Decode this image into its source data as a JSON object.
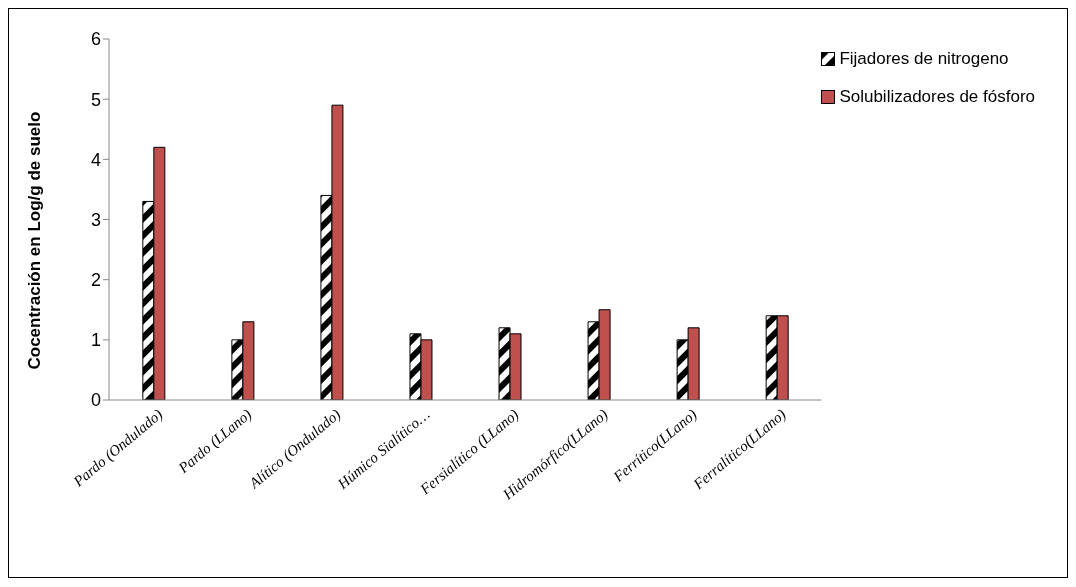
{
  "chart_data": {
    "type": "bar",
    "ylabel": "Cocentración en Log/g de suelo",
    "categories": [
      "Pardo (Ondulado)",
      "Pardo (LLano)",
      "Alítico (Ondulado)",
      "Húmico Sialítico…",
      "Fersialítico (LLano)",
      "Hidromórfico(LLano)",
      "Ferrítico(LLano)",
      "Ferralítico(LLano)"
    ],
    "series": [
      {
        "name": "Fijadores de nitrogeno",
        "color": "#000000",
        "values": [
          3.3,
          1.0,
          3.4,
          1.1,
          1.2,
          1.3,
          1.0,
          1.4
        ]
      },
      {
        "name": "Solubilizadores de fósforo",
        "color": "#c0504d",
        "values": [
          4.2,
          1.3,
          4.9,
          1.0,
          1.1,
          1.5,
          1.2,
          1.4
        ]
      }
    ],
    "ylim": [
      0,
      6
    ],
    "yticks": [
      0,
      1,
      2,
      3,
      4,
      5,
      6
    ],
    "legend": "top right"
  }
}
